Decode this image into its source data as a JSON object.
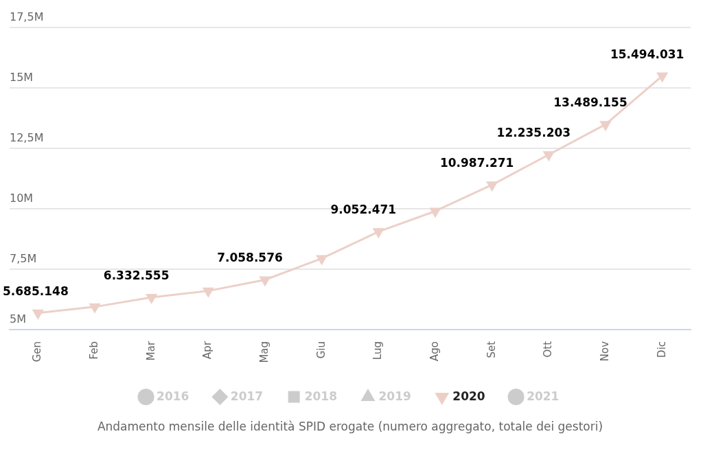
{
  "chart_data": {
    "type": "line",
    "title": "Andamento mensile delle identità SPID erogate (numero aggregato, totale dei gestori)",
    "categories": [
      "Gen",
      "Feb",
      "Mar",
      "Apr",
      "Mag",
      "Giu",
      "Lug",
      "Ago",
      "Set",
      "Ott",
      "Nov",
      "Dic"
    ],
    "series": [
      {
        "name": "2016",
        "color": "#cccccc",
        "marker": "circle",
        "values": [
          null,
          null,
          null,
          null,
          null,
          null,
          null,
          null,
          null,
          null,
          null,
          null
        ]
      },
      {
        "name": "2017",
        "color": "#cccccc",
        "marker": "diamond",
        "values": [
          null,
          null,
          null,
          null,
          null,
          null,
          null,
          null,
          null,
          null,
          null,
          null
        ]
      },
      {
        "name": "2018",
        "color": "#cccccc",
        "marker": "square",
        "values": [
          null,
          null,
          null,
          null,
          null,
          null,
          null,
          null,
          null,
          null,
          null,
          null
        ]
      },
      {
        "name": "2019",
        "color": "#cccccc",
        "marker": "triangle",
        "values": [
          null,
          null,
          null,
          null,
          null,
          null,
          null,
          null,
          null,
          null,
          null,
          null
        ]
      },
      {
        "name": "2020",
        "color": "#ecd0c8",
        "marker": "triangle-down",
        "values": [
          5685148,
          5940000,
          6332555,
          6600000,
          7058576,
          7940000,
          9052471,
          9900000,
          10987271,
          12235203,
          13489155,
          15494031
        ],
        "value_labels": [
          "5.685.148",
          null,
          "6.332.555",
          null,
          "7.058.576",
          null,
          "9.052.471",
          null,
          "10.987.271",
          "12.235.203",
          "13.489.155",
          "15.494.031"
        ]
      },
      {
        "name": "2021",
        "color": "#cccccc",
        "marker": "circle",
        "values": [
          null,
          null,
          null,
          null,
          null,
          null,
          null,
          null,
          null,
          null,
          null,
          null
        ]
      }
    ],
    "ylim": [
      5000000,
      17500000
    ],
    "yticks": [
      {
        "value": 5000000,
        "label": "5M"
      },
      {
        "value": 7500000,
        "label": "7,5M"
      },
      {
        "value": 10000000,
        "label": "10M"
      },
      {
        "value": 12500000,
        "label": "12,5M"
      },
      {
        "value": 15000000,
        "label": "15M"
      },
      {
        "value": 17500000,
        "label": "17,5M"
      }
    ],
    "grid": "y",
    "legend": "bottom"
  }
}
